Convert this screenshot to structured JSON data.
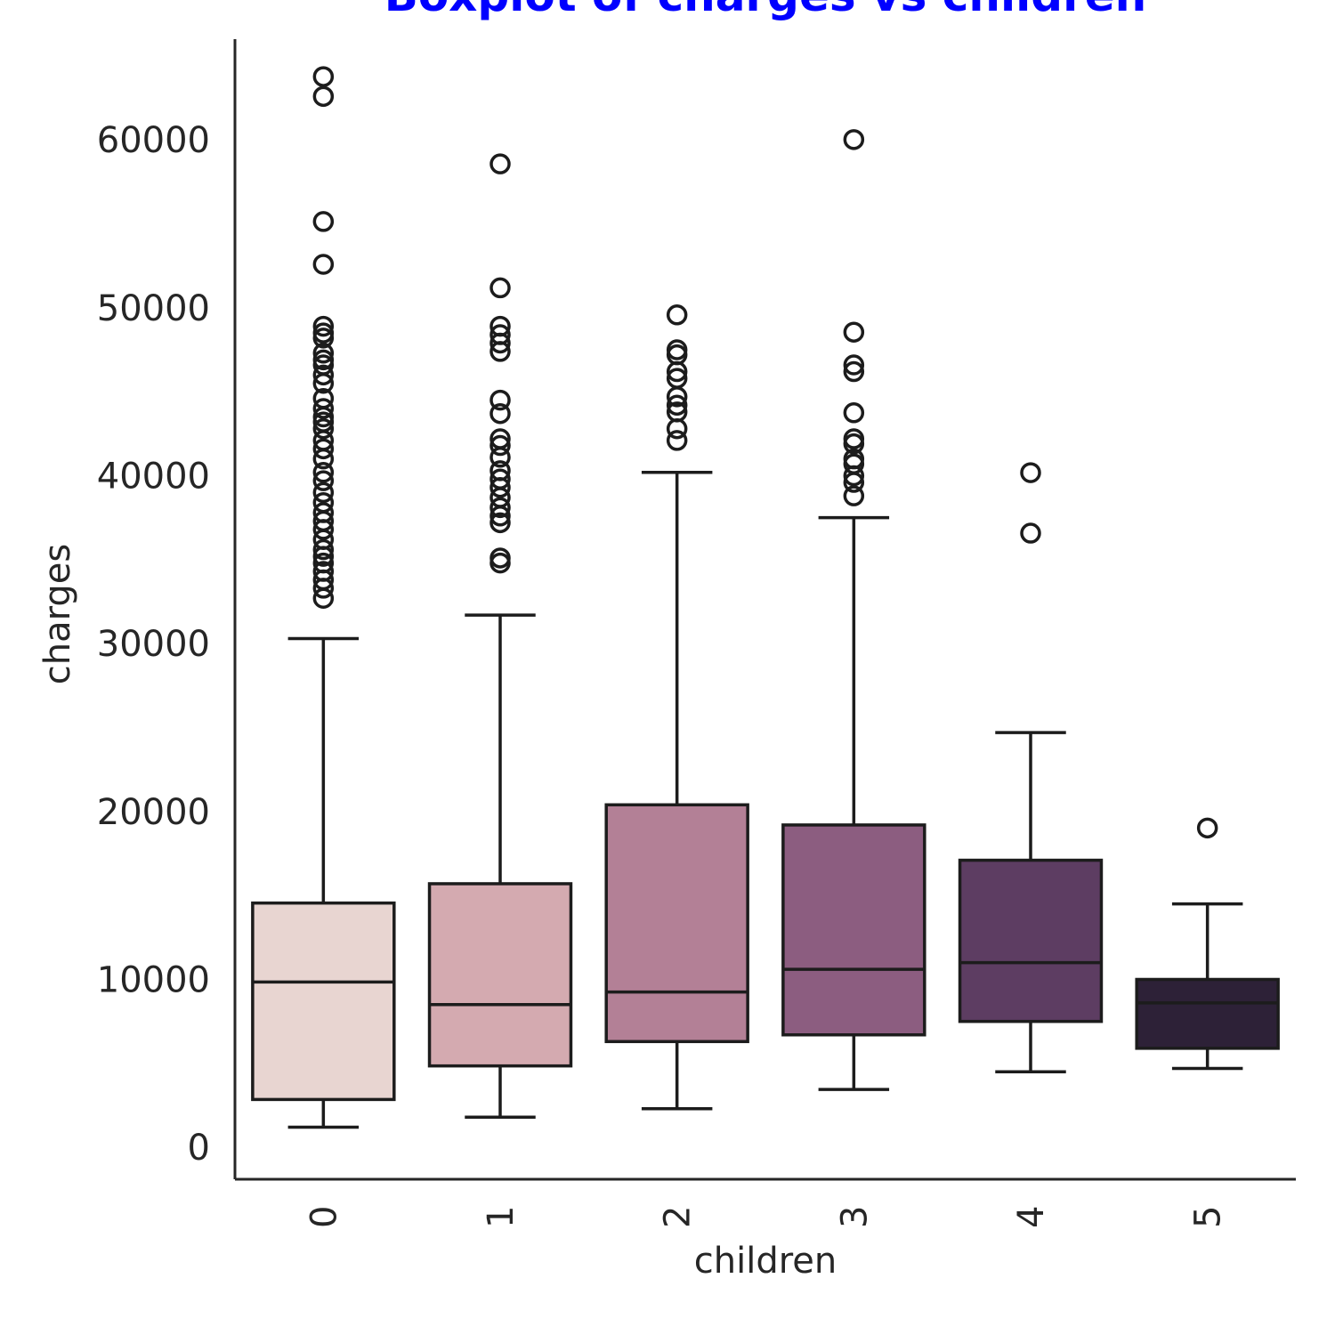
{
  "chart_data": {
    "type": "box",
    "title": "Boxplot of charges vs children",
    "xlabel": "children",
    "ylabel": "charges",
    "categories": [
      "0",
      "1",
      "2",
      "3",
      "4",
      "5"
    ],
    "y_ticks": [
      "0",
      "10000",
      "20000",
      "30000",
      "40000",
      "50000",
      "60000"
    ],
    "ylim": [
      -1900,
      66000
    ],
    "grid": false,
    "colors": {
      "title": "#0000ff",
      "boxes": [
        "#e8d5d1",
        "#d4aab0",
        "#b38096",
        "#8c5d80",
        "#5d3d62",
        "#2d2137"
      ],
      "lines": "#1c1c1c"
    },
    "boxes": [
      {
        "category": "0",
        "whisker_low": 1200,
        "q1": 2850,
        "median": 9850,
        "q3": 14550,
        "whisker_high": 30300,
        "outliers": [
          63770,
          62590,
          55140,
          52590,
          48900,
          48500,
          48200,
          47300,
          46900,
          46600,
          46000,
          45500,
          44600,
          44000,
          43500,
          43200,
          42800,
          42100,
          41600,
          41000,
          40200,
          39700,
          39000,
          38400,
          37800,
          37300,
          36800,
          36200,
          35600,
          35200,
          34800,
          34300,
          33800,
          33300,
          32700
        ]
      },
      {
        "category": "1",
        "whisker_low": 1800,
        "q1": 4850,
        "median": 8500,
        "q3": 15700,
        "whisker_high": 31700,
        "outliers": [
          58570,
          51190,
          48900,
          48400,
          47900,
          47400,
          44500,
          43700,
          42200,
          41800,
          41100,
          40300,
          39800,
          39300,
          38700,
          38100,
          37600,
          37200,
          35100,
          34800
        ]
      },
      {
        "category": "2",
        "whisker_low": 2300,
        "q1": 6300,
        "median": 9250,
        "q3": 20400,
        "whisker_high": 40200,
        "outliers": [
          49580,
          47500,
          47200,
          46200,
          45800,
          44700,
          44200,
          43800,
          42800,
          42100
        ]
      },
      {
        "category": "3",
        "whisker_low": 3450,
        "q1": 6700,
        "median": 10600,
        "q3": 19200,
        "whisker_high": 37500,
        "outliers": [
          60020,
          48550,
          46600,
          46200,
          43750,
          42200,
          41900,
          41000,
          40700,
          40000,
          39600,
          38800
        ]
      },
      {
        "category": "4",
        "whisker_low": 4500,
        "q1": 7500,
        "median": 11000,
        "q3": 17100,
        "whisker_high": 24700,
        "outliers": [
          40180,
          36580
        ]
      },
      {
        "category": "5",
        "whisker_low": 4700,
        "q1": 5900,
        "median": 8600,
        "q3": 10000,
        "whisker_high": 14500,
        "outliers": [
          19020
        ]
      }
    ]
  }
}
